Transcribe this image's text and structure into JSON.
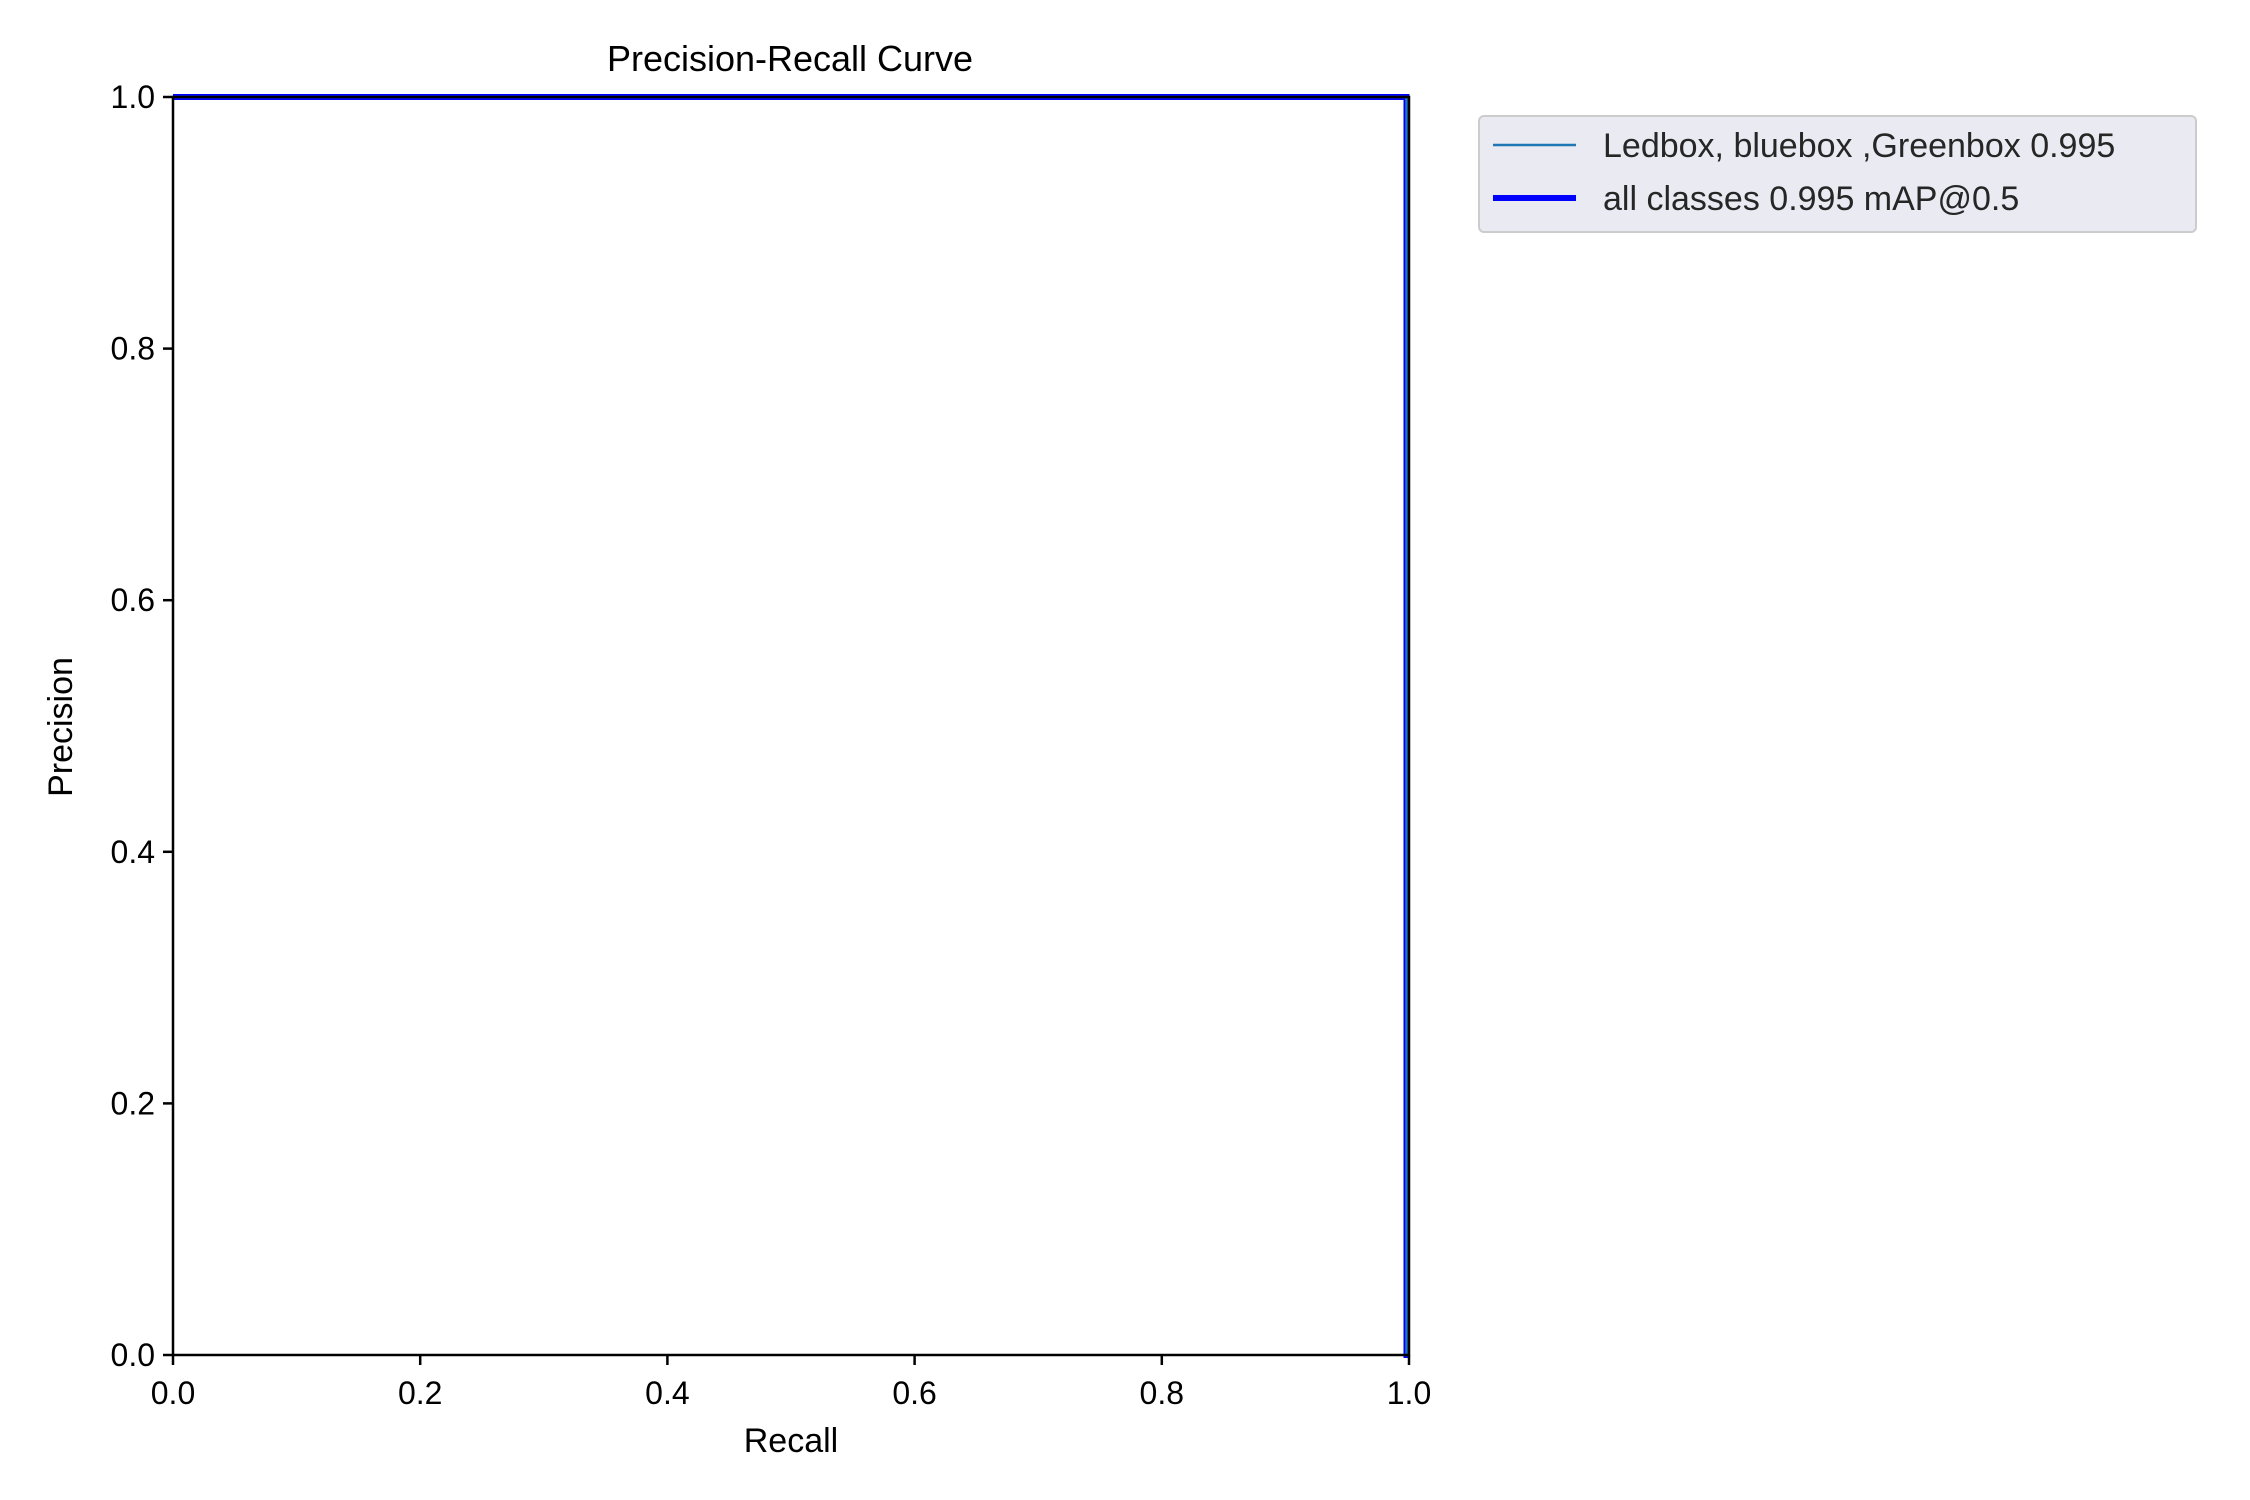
{
  "chart_data": {
    "type": "line",
    "title": "Precision-Recall Curve",
    "xlabel": "Recall",
    "ylabel": "Precision",
    "xlim": [
      0.0,
      1.0
    ],
    "ylim": [
      0.0,
      1.0
    ],
    "x_ticks": [
      "0.0",
      "0.2",
      "0.4",
      "0.6",
      "0.8",
      "1.0"
    ],
    "y_ticks": [
      "0.0",
      "0.2",
      "0.4",
      "0.6",
      "0.8",
      "1.0"
    ],
    "grid": false,
    "legend_position": "outside upper right",
    "series": [
      {
        "name": "Ledbox, bluebox ,Greenbox 0.995",
        "color": "#1f77b4",
        "x": [
          0.0,
          0.998,
          0.998,
          1.0
        ],
        "y": [
          1.0,
          1.0,
          0.0,
          0.0
        ]
      },
      {
        "name": "all classes 0.995 mAP@0.5",
        "color": "#0000ff",
        "x": [
          0.0,
          0.998,
          0.998,
          1.0
        ],
        "y": [
          1.0,
          1.0,
          0.0,
          0.0
        ]
      }
    ]
  }
}
